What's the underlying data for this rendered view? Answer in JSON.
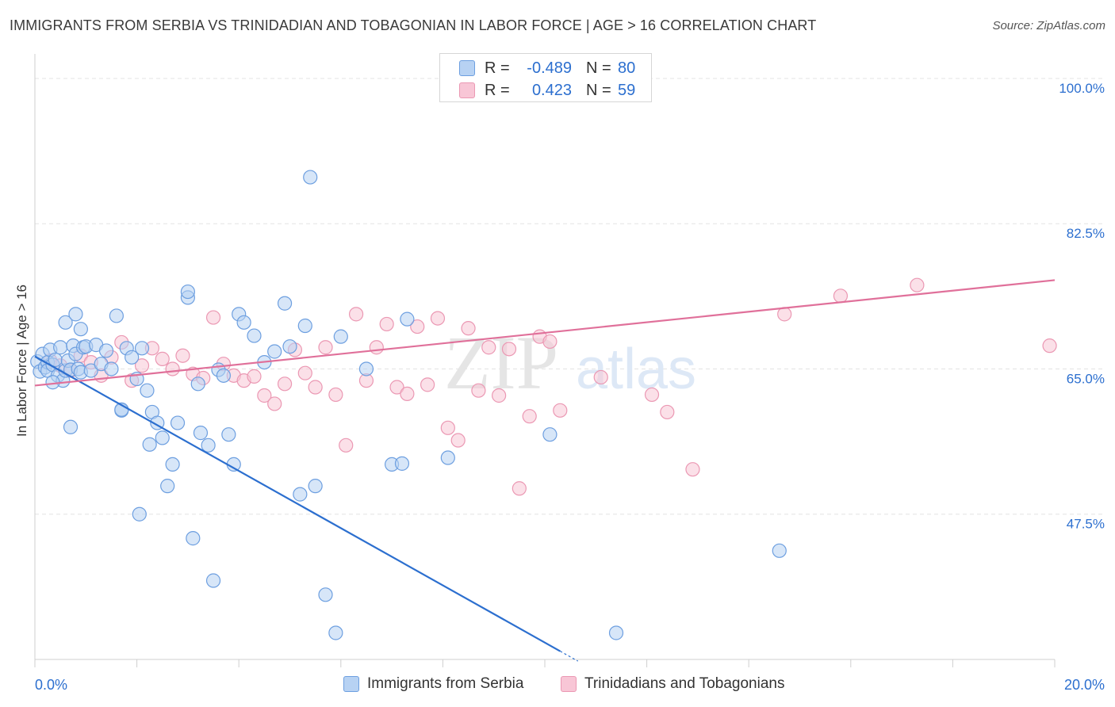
{
  "header": {
    "title": "IMMIGRANTS FROM SERBIA VS TRINIDADIAN AND TOBAGONIAN IN LABOR FORCE | AGE > 16 CORRELATION CHART",
    "source": "Source: ZipAtlas.com"
  },
  "watermark": {
    "zip": "ZIP",
    "atlas": "atlas"
  },
  "legend_top": {
    "rows": [
      {
        "r_label": "R =",
        "r_value": "-0.489",
        "n_label": "N =",
        "n_value": "80",
        "color": "#b7d2f3"
      },
      {
        "r_label": "R =",
        "r_value": "0.423",
        "n_label": "N =",
        "n_value": "59",
        "color": "#f8c6d6"
      }
    ]
  },
  "legend_bottom": {
    "items": [
      {
        "label": "Immigrants from Serbia",
        "color": "#b7d2f3"
      },
      {
        "label": "Trinidadians and Tobagonians",
        "color": "#f8c6d6"
      }
    ]
  },
  "chart_data": {
    "type": "scatter",
    "title": "IMMIGRANTS FROM SERBIA VS TRINIDADIAN AND TOBAGONIAN IN LABOR FORCE | AGE > 16 CORRELATION CHART",
    "xlabel": "",
    "ylabel": "In Labor Force | Age > 16",
    "xlim": [
      0,
      20
    ],
    "ylim": [
      30,
      102
    ],
    "x_tick_labels": [
      "0.0%",
      "20.0%"
    ],
    "y_ticks": [
      47.5,
      65.0,
      82.5,
      100.0
    ],
    "y_tick_labels": [
      "47.5%",
      "65.0%",
      "82.5%",
      "100.0%"
    ],
    "grid": true,
    "legend_position": "top-center",
    "series": [
      {
        "name": "Immigrants from Serbia",
        "color": "#6d9fe0",
        "fill": "#b7d2f3",
        "line_color": "#2c6fcf",
        "trend": {
          "x": [
            0.0,
            10.3
          ],
          "y": [
            66.5,
            31.0
          ]
        },
        "points": [
          [
            0.05,
            65.9
          ],
          [
            0.1,
            64.7
          ],
          [
            0.15,
            66.8
          ],
          [
            0.2,
            65.2
          ],
          [
            0.25,
            65.8
          ],
          [
            0.25,
            64.8
          ],
          [
            0.3,
            67.3
          ],
          [
            0.35,
            65.5
          ],
          [
            0.4,
            66.1
          ],
          [
            0.45,
            64.2
          ],
          [
            0.5,
            67.6
          ],
          [
            0.55,
            63.6
          ],
          [
            0.6,
            64.8
          ],
          [
            0.65,
            66.0
          ],
          [
            0.7,
            64.9
          ],
          [
            0.75,
            67.8
          ],
          [
            0.8,
            66.8
          ],
          [
            0.85,
            65.0
          ],
          [
            0.9,
            64.6
          ],
          [
            0.95,
            67.6
          ],
          [
            0.6,
            70.6
          ],
          [
            0.7,
            58.0
          ],
          [
            0.8,
            71.6
          ],
          [
            0.9,
            69.8
          ],
          [
            1.0,
            67.7
          ],
          [
            1.1,
            64.8
          ],
          [
            1.2,
            67.9
          ],
          [
            1.3,
            65.6
          ],
          [
            1.4,
            67.2
          ],
          [
            1.5,
            65.0
          ],
          [
            1.6,
            71.4
          ],
          [
            1.7,
            60.0
          ],
          [
            1.8,
            67.5
          ],
          [
            1.9,
            66.4
          ],
          [
            2.0,
            63.8
          ],
          [
            2.1,
            67.5
          ],
          [
            2.2,
            62.4
          ],
          [
            2.25,
            55.9
          ],
          [
            2.3,
            59.8
          ],
          [
            2.4,
            58.5
          ],
          [
            2.5,
            56.7
          ],
          [
            2.6,
            50.9
          ],
          [
            2.7,
            53.5
          ],
          [
            2.8,
            58.5
          ],
          [
            3.0,
            73.6
          ],
          [
            3.0,
            74.3
          ],
          [
            3.1,
            44.6
          ],
          [
            3.2,
            63.2
          ],
          [
            3.25,
            57.3
          ],
          [
            3.4,
            55.8
          ],
          [
            3.5,
            39.5
          ],
          [
            3.6,
            64.9
          ],
          [
            3.7,
            64.2
          ],
          [
            3.8,
            57.1
          ],
          [
            3.9,
            53.5
          ],
          [
            4.0,
            71.6
          ],
          [
            4.1,
            70.6
          ],
          [
            4.3,
            69.0
          ],
          [
            4.5,
            65.8
          ],
          [
            4.7,
            67.1
          ],
          [
            4.9,
            72.9
          ],
          [
            5.0,
            67.7
          ],
          [
            5.2,
            49.9
          ],
          [
            5.3,
            70.2
          ],
          [
            5.4,
            88.1
          ],
          [
            5.5,
            50.9
          ],
          [
            5.7,
            37.8
          ],
          [
            5.9,
            33.2
          ],
          [
            6.0,
            68.9
          ],
          [
            6.5,
            65.0
          ],
          [
            7.0,
            53.5
          ],
          [
            7.2,
            53.6
          ],
          [
            7.3,
            71.0
          ],
          [
            8.1,
            54.3
          ],
          [
            10.1,
            57.1
          ],
          [
            11.4,
            33.2
          ],
          [
            14.6,
            43.1
          ],
          [
            1.7,
            60.1
          ],
          [
            2.05,
            47.5
          ],
          [
            0.35,
            63.4
          ]
        ]
      },
      {
        "name": "Trinidadians and Tobagonians",
        "color": "#eb98b3",
        "fill": "#f8c6d6",
        "line_color": "#e0709a",
        "trend": {
          "x": [
            0.0,
            20.0
          ],
          "y": [
            63.0,
            75.7
          ]
        },
        "points": [
          [
            0.3,
            66.0
          ],
          [
            0.5,
            65.4
          ],
          [
            0.7,
            64.8
          ],
          [
            0.9,
            66.6
          ],
          [
            1.1,
            65.8
          ],
          [
            1.3,
            64.2
          ],
          [
            1.5,
            66.4
          ],
          [
            1.7,
            68.2
          ],
          [
            1.9,
            63.6
          ],
          [
            2.1,
            65.4
          ],
          [
            2.3,
            67.5
          ],
          [
            2.5,
            66.2
          ],
          [
            2.7,
            65.0
          ],
          [
            2.9,
            66.6
          ],
          [
            3.1,
            64.4
          ],
          [
            3.3,
            63.9
          ],
          [
            3.5,
            71.2
          ],
          [
            3.7,
            65.6
          ],
          [
            3.9,
            64.2
          ],
          [
            4.1,
            63.6
          ],
          [
            4.3,
            64.1
          ],
          [
            4.5,
            61.8
          ],
          [
            4.7,
            60.8
          ],
          [
            4.9,
            63.2
          ],
          [
            5.1,
            67.3
          ],
          [
            5.3,
            64.5
          ],
          [
            5.5,
            62.8
          ],
          [
            5.7,
            67.6
          ],
          [
            5.9,
            61.9
          ],
          [
            6.1,
            55.8
          ],
          [
            6.3,
            71.6
          ],
          [
            6.5,
            63.6
          ],
          [
            6.7,
            67.6
          ],
          [
            6.9,
            70.4
          ],
          [
            7.1,
            62.8
          ],
          [
            7.3,
            62.0
          ],
          [
            7.5,
            70.1
          ],
          [
            7.7,
            63.1
          ],
          [
            7.9,
            71.1
          ],
          [
            8.1,
            57.9
          ],
          [
            8.3,
            56.4
          ],
          [
            8.5,
            69.9
          ],
          [
            8.7,
            62.4
          ],
          [
            8.9,
            67.6
          ],
          [
            9.1,
            61.8
          ],
          [
            9.3,
            67.4
          ],
          [
            9.5,
            50.6
          ],
          [
            9.7,
            59.3
          ],
          [
            9.9,
            68.9
          ],
          [
            10.1,
            68.3
          ],
          [
            10.3,
            60.0
          ],
          [
            11.1,
            64.0
          ],
          [
            12.1,
            61.9
          ],
          [
            12.4,
            59.8
          ],
          [
            12.9,
            52.9
          ],
          [
            14.7,
            71.6
          ],
          [
            15.8,
            73.8
          ],
          [
            17.3,
            75.1
          ],
          [
            19.9,
            67.8
          ]
        ]
      }
    ]
  }
}
